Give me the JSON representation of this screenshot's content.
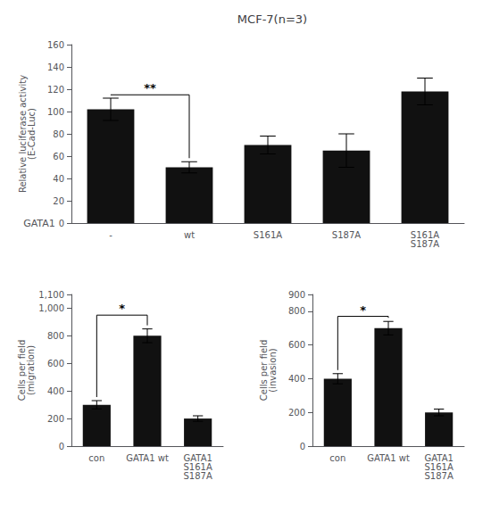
{
  "chart_data": [
    {
      "type": "bar",
      "title": "MCF-7(n=3)",
      "xlabel": "GATA1",
      "ylabel": "Relative luciferase activity\n(E-Cad-Luc)",
      "categories": [
        "-",
        "wt",
        "S161A",
        "S187A",
        "S161A\nS187A"
      ],
      "values": [
        102,
        50,
        70,
        65,
        118
      ],
      "errors": [
        10,
        5,
        8,
        15,
        12
      ],
      "color": "#111111",
      "ylim": [
        0,
        160
      ],
      "yticks": [
        0,
        20,
        40,
        60,
        80,
        100,
        120,
        140,
        160
      ],
      "grid": false,
      "annotations": [
        {
          "text": "**",
          "between": [
            "-",
            "wt"
          ],
          "y": 115
        }
      ]
    },
    {
      "type": "bar",
      "ylabel": "Cells per field\n(migration)",
      "categories": [
        "con",
        "GATA1 wt",
        "GATA1\nS161A\nS187A"
      ],
      "values": [
        300,
        800,
        200
      ],
      "errors": [
        30,
        50,
        20
      ],
      "color": "#111111",
      "ylim": [
        0,
        1100
      ],
      "yticks": [
        0,
        200,
        400,
        600,
        800,
        1000
      ],
      "grid": false,
      "annotations": [
        {
          "text": "*",
          "between": [
            "con",
            "GATA1 wt"
          ],
          "y": 950
        }
      ]
    },
    {
      "type": "bar",
      "ylabel": "Cells per field\n(invasion)",
      "categories": [
        "con",
        "GATA1 wt",
        "GATA1\nS161A\nS187A"
      ],
      "values": [
        400,
        700,
        200
      ],
      "errors": [
        30,
        40,
        20
      ],
      "color": "#111111",
      "ylim": [
        0,
        900
      ],
      "yticks": [
        0,
        200,
        400,
        600,
        800
      ],
      "grid": false,
      "annotations": [
        {
          "text": "*",
          "between": [
            "con",
            "GATA1 wt"
          ],
          "y": 770
        }
      ]
    }
  ]
}
